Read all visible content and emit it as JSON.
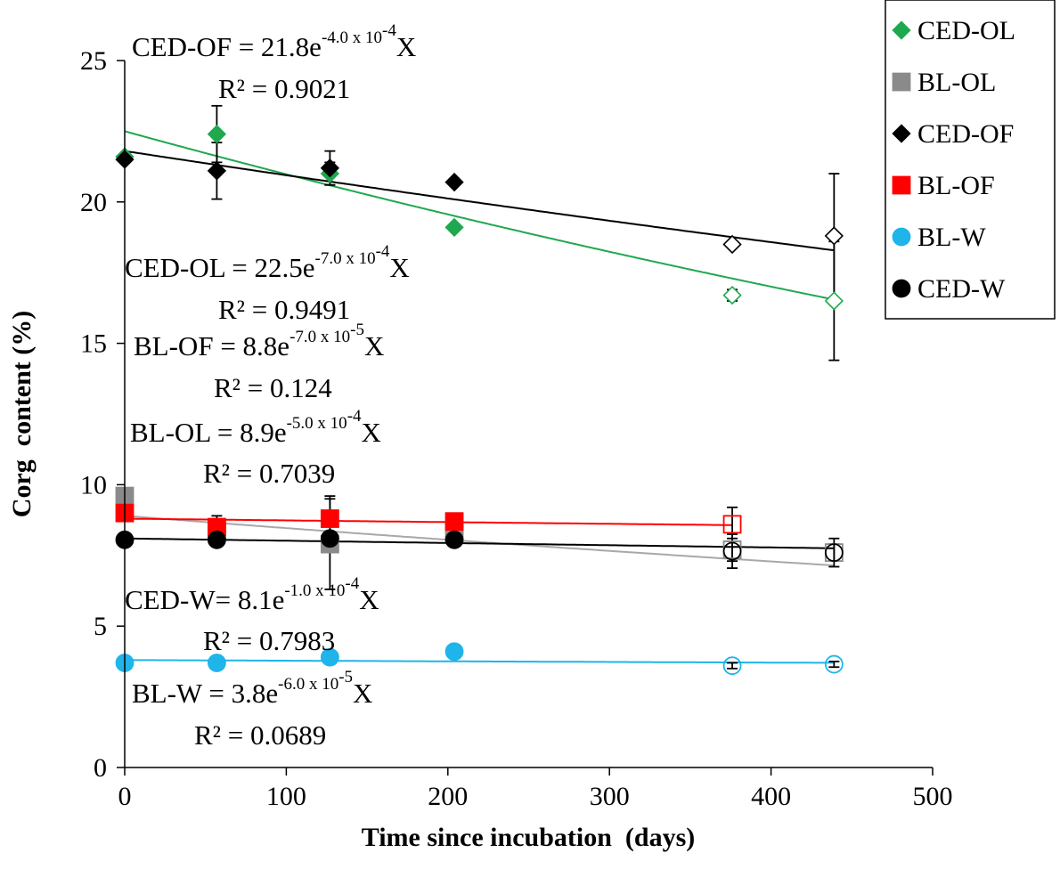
{
  "chart_data": {
    "type": "scatter",
    "title": "",
    "xlabel": "Time since incubation  (days)",
    "ylabel": "Corg  content (%)",
    "xlim": [
      0,
      500
    ],
    "ylim": [
      0,
      25
    ],
    "x_ticks": [
      0,
      100,
      200,
      300,
      400,
      500
    ],
    "y_ticks": [
      0,
      5,
      10,
      15,
      20,
      25
    ],
    "x_tick_labels": [
      "0",
      "100",
      "200",
      "300",
      "400",
      "500"
    ],
    "y_tick_labels": [
      "0",
      "5",
      "10",
      "15",
      "20",
      "25"
    ],
    "grid": false,
    "legend_position": "top-right outside",
    "series": [
      {
        "name": "CED-OL",
        "color": "#1fa84f",
        "marker": "diamond",
        "x": [
          0,
          57,
          127,
          204,
          376,
          439
        ],
        "y": [
          21.6,
          22.4,
          21.0,
          19.1,
          16.7,
          16.5
        ],
        "yerr": [
          0,
          1.0,
          0.4,
          0,
          0.2,
          2.1
        ],
        "hollow": [
          false,
          false,
          false,
          false,
          true,
          true
        ],
        "fit": {
          "a": 22.5,
          "k": -0.0007,
          "color": "#1fa84f"
        }
      },
      {
        "name": "BL-OL",
        "color": "#8a8a8a",
        "marker": "square",
        "x": [
          0,
          57,
          127,
          204,
          376,
          439
        ],
        "y": [
          9.6,
          8.4,
          7.9,
          8.4,
          7.7,
          7.6
        ],
        "yerr": [
          0,
          0.3,
          1.6,
          0,
          0.4,
          0.3
        ],
        "hollow": [
          false,
          false,
          false,
          false,
          true,
          true
        ],
        "fit": {
          "a": 8.9,
          "k": -0.0005,
          "color": "#a8a8a8"
        }
      },
      {
        "name": "CED-OF",
        "color": "#000000",
        "marker": "diamond",
        "x": [
          0,
          57,
          127,
          204,
          376,
          439
        ],
        "y": [
          21.5,
          21.1,
          21.2,
          20.7,
          18.5,
          18.8
        ],
        "yerr": [
          0,
          1.0,
          0.6,
          0,
          0,
          2.2
        ],
        "hollow": [
          false,
          false,
          false,
          false,
          true,
          true
        ],
        "fit": {
          "a": 21.8,
          "k": -0.0004,
          "color": "#000000"
        }
      },
      {
        "name": "BL-OF",
        "color": "#ff0000",
        "marker": "square",
        "x": [
          0,
          57,
          127,
          204,
          376
        ],
        "y": [
          9.0,
          8.5,
          8.8,
          8.7,
          8.6
        ],
        "yerr": [
          0,
          0.4,
          0.8,
          0,
          0.6
        ],
        "hollow": [
          false,
          false,
          false,
          false,
          true
        ],
        "fit": {
          "a": 8.8,
          "k": -7e-05,
          "color": "#ff0000"
        }
      },
      {
        "name": "BL-W",
        "color": "#1fb4ea",
        "marker": "circle",
        "x": [
          0,
          57,
          127,
          204,
          376,
          439
        ],
        "y": [
          3.7,
          3.7,
          3.9,
          4.1,
          3.6,
          3.65
        ],
        "yerr": [
          0,
          0,
          0,
          0,
          0.1,
          0.1
        ],
        "hollow": [
          false,
          false,
          false,
          false,
          true,
          true
        ],
        "fit": {
          "a": 3.8,
          "k": -6e-05,
          "color": "#1fb4ea"
        }
      },
      {
        "name": "CED-W",
        "color": "#000000",
        "marker": "circle",
        "x": [
          0,
          57,
          127,
          204,
          376,
          439
        ],
        "y": [
          8.05,
          8.05,
          8.1,
          8.05,
          7.65,
          7.6
        ],
        "yerr": [
          0,
          0,
          0,
          0,
          0.6,
          0.5
        ],
        "hollow": [
          false,
          false,
          false,
          false,
          true,
          true
        ],
        "fit": {
          "a": 8.1,
          "k": -0.0001,
          "color": "#000000"
        }
      }
    ],
    "annotations": [
      {
        "name": "eq-ced-of",
        "eq": {
          "lhs": "CED-OF = 21.8e",
          "sup": "-4.0 x 10",
          "sup2": "-4",
          "tail": "X"
        },
        "r2": "R² = 0.9021"
      },
      {
        "name": "eq-ced-ol",
        "eq": {
          "lhs": "CED-OL = 22.5e",
          "sup": "-7.0 x 10",
          "sup2": "-4",
          "tail": "X"
        },
        "r2": "R² = 0.9491"
      },
      {
        "name": "eq-bl-of",
        "eq": {
          "lhs": "BL-OF = 8.8e",
          "sup": "-7.0 x 10",
          "sup2": "-5",
          "tail": "X"
        },
        "r2": "R² = 0.124"
      },
      {
        "name": "eq-bl-ol",
        "eq": {
          "lhs": "BL-OL = 8.9e",
          "sup": "-5.0 x 10",
          "sup2": "-4",
          "tail": "X"
        },
        "r2": "R² = 0.7039"
      },
      {
        "name": "eq-ced-w",
        "eq": {
          "lhs": "CED-W= 8.1e",
          "sup": "-1.0 x 10",
          "sup2": "-4",
          "tail": "X"
        },
        "r2": "R² = 0.7983"
      },
      {
        "name": "eq-bl-w",
        "eq": {
          "lhs": "BL-W = 3.8e",
          "sup": "-6.0 x 10",
          "sup2": "-5",
          "tail": "X"
        },
        "r2": "R² = 0.0689"
      }
    ]
  }
}
